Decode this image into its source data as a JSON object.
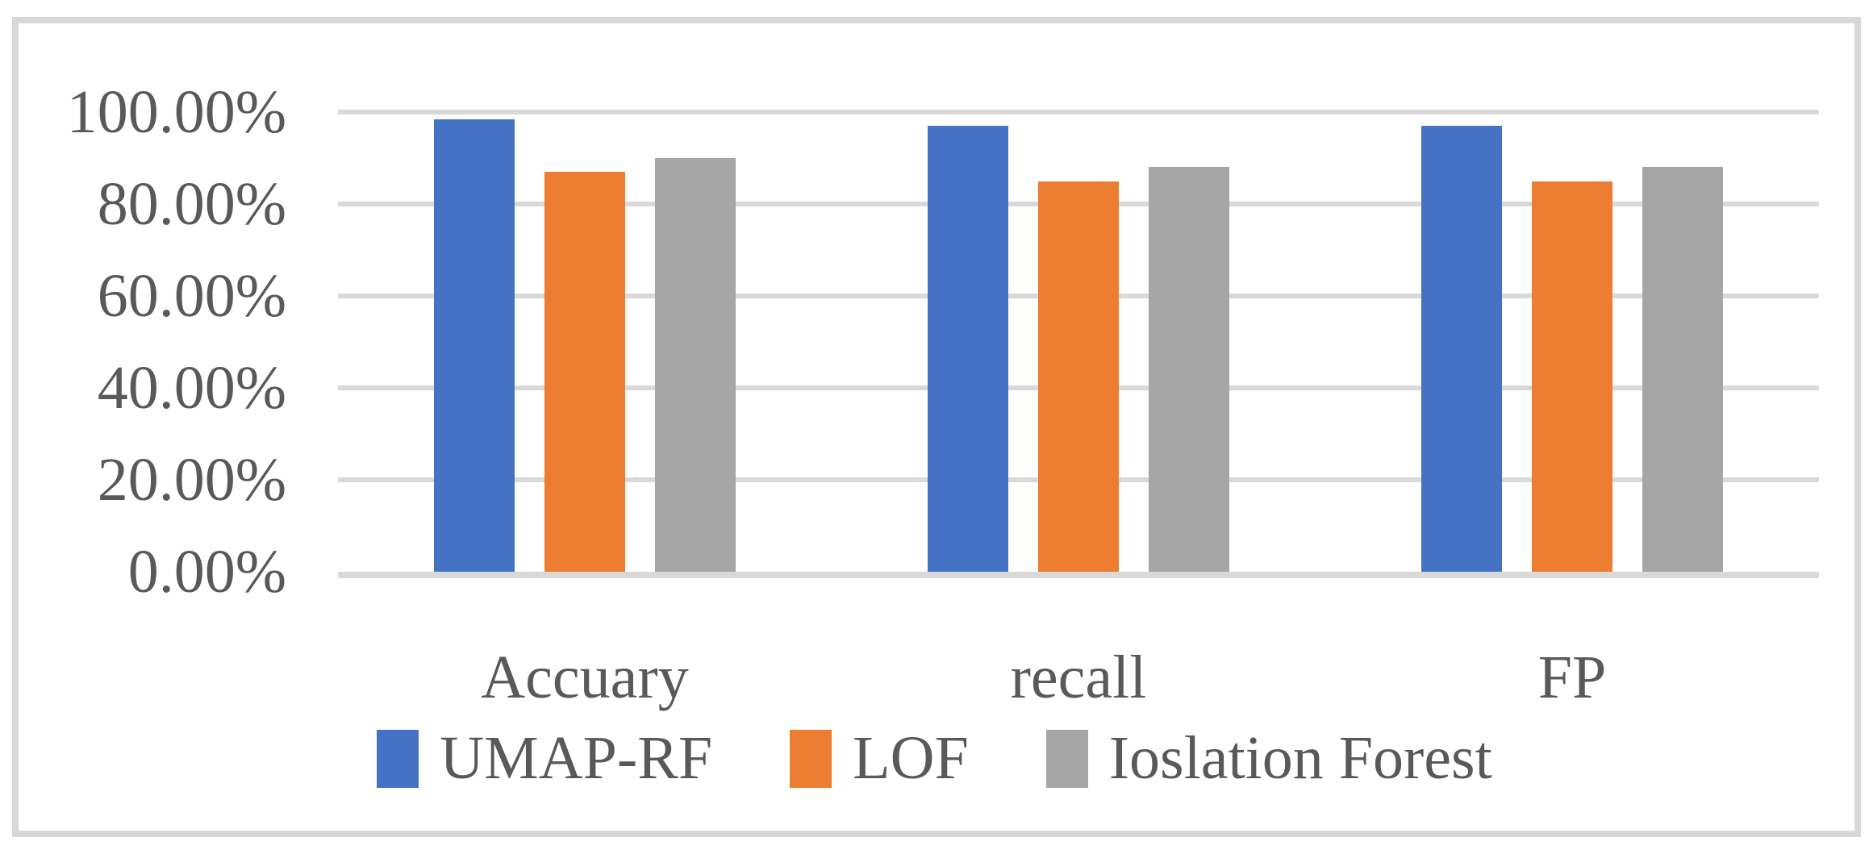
{
  "chart_data": {
    "type": "bar",
    "title": "",
    "xlabel": "",
    "ylabel": "",
    "categories": [
      "Accuary",
      "recall",
      "FP"
    ],
    "series": [
      {
        "name": "UMAP-RF",
        "color": "#4472C4",
        "values": [
          98.5,
          97.0,
          97.0
        ]
      },
      {
        "name": "LOF",
        "color": "#ED7D31",
        "values": [
          87.0,
          85.0,
          85.0
        ]
      },
      {
        "name": "Ioslation Forest",
        "color": "#A6A6A6",
        "values": [
          90.0,
          88.0,
          88.0
        ]
      }
    ],
    "ylim": [
      0,
      100
    ],
    "yticks": [
      {
        "value": 0,
        "label": "0.00%"
      },
      {
        "value": 20,
        "label": "20.00%"
      },
      {
        "value": 40,
        "label": "40.00%"
      },
      {
        "value": 60,
        "label": "60.00%"
      },
      {
        "value": 80,
        "label": "80.00%"
      },
      {
        "value": 100,
        "label": "100.00%"
      }
    ],
    "grid": true,
    "legend_position": "bottom",
    "styles": {
      "text_color": "#595959",
      "gridline_color": "#D9D9D9",
      "axis_line_color": "#D9D9D9",
      "figure_border_color": "#D8D8D8",
      "background": "#FFFFFF"
    }
  }
}
